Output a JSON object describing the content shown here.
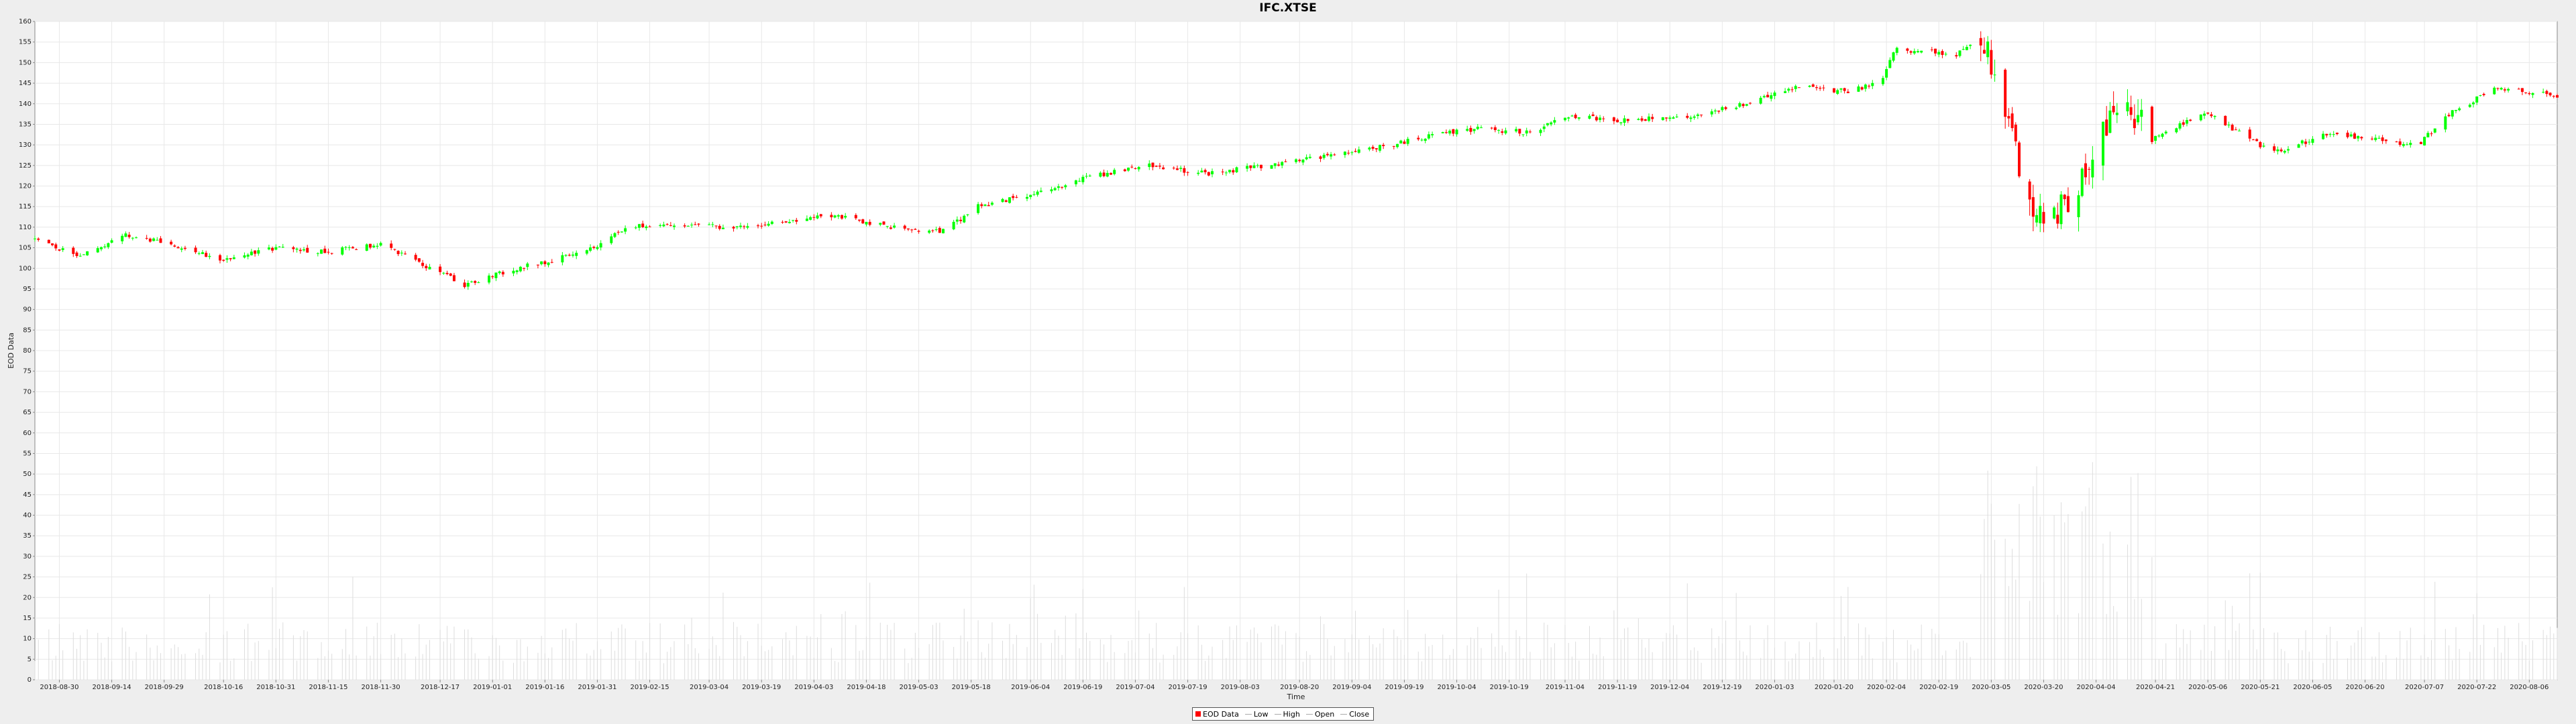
{
  "chart_data": {
    "type": "candlestick",
    "title": "IFC.XTSE",
    "xlabel": "Time",
    "ylabel": "EOD Data",
    "ylim": [
      0,
      160
    ],
    "y_ticks": [
      0,
      5,
      10,
      15,
      20,
      25,
      30,
      35,
      40,
      45,
      50,
      55,
      60,
      65,
      70,
      75,
      80,
      85,
      90,
      95,
      100,
      105,
      110,
      115,
      120,
      125,
      130,
      135,
      140,
      145,
      150,
      155,
      160
    ],
    "x_range": [
      "2018-08-23",
      "2020-08-14"
    ],
    "x_ticks": [
      "2018-08-30",
      "2018-09-14",
      "2018-09-29",
      "2018-10-16",
      "2018-10-31",
      "2018-11-15",
      "2018-11-30",
      "2018-12-17",
      "2019-01-01",
      "2019-01-16",
      "2019-01-31",
      "2019-02-15",
      "2019-03-04",
      "2019-03-19",
      "2019-04-03",
      "2019-04-18",
      "2019-05-03",
      "2019-05-18",
      "2019-06-04",
      "2019-06-19",
      "2019-07-04",
      "2019-07-19",
      "2019-08-03",
      "2019-08-20",
      "2019-09-04",
      "2019-09-19",
      "2019-10-04",
      "2019-10-19",
      "2019-11-04",
      "2019-11-19",
      "2019-12-04",
      "2019-12-19",
      "2020-01-03",
      "2020-01-20",
      "2020-02-04",
      "2020-02-19",
      "2020-03-05",
      "2020-03-20",
      "2020-04-04",
      "2020-04-21",
      "2020-05-06",
      "2020-05-21",
      "2020-06-05",
      "2020-06-20",
      "2020-07-07",
      "2020-07-22",
      "2020-08-06"
    ],
    "close_keypoints": [
      [
        "2018-08-23",
        107
      ],
      [
        "2018-09-05",
        103
      ],
      [
        "2018-09-18",
        108
      ],
      [
        "2018-10-01",
        106
      ],
      [
        "2018-10-15",
        102
      ],
      [
        "2018-10-31",
        105
      ],
      [
        "2018-11-15",
        104
      ],
      [
        "2018-11-30",
        106
      ],
      [
        "2018-12-12",
        101
      ],
      [
        "2018-12-24",
        96
      ],
      [
        "2019-01-08",
        100
      ],
      [
        "2019-01-23",
        103
      ],
      [
        "2019-01-31",
        105
      ],
      [
        "2019-02-08",
        110
      ],
      [
        "2019-02-20",
        111
      ],
      [
        "2019-03-10",
        110
      ],
      [
        "2019-03-25",
        111
      ],
      [
        "2019-04-08",
        113
      ],
      [
        "2019-04-25",
        110
      ],
      [
        "2019-05-10",
        109
      ],
      [
        "2019-05-20",
        115
      ],
      [
        "2019-06-05",
        118
      ],
      [
        "2019-06-20",
        122
      ],
      [
        "2019-07-08",
        125
      ],
      [
        "2019-07-25",
        123
      ],
      [
        "2019-08-10",
        125
      ],
      [
        "2019-08-25",
        127
      ],
      [
        "2019-09-10",
        129
      ],
      [
        "2019-09-25",
        132
      ],
      [
        "2019-10-10",
        134
      ],
      [
        "2019-10-25",
        133
      ],
      [
        "2019-11-05",
        137
      ],
      [
        "2019-11-20",
        136
      ],
      [
        "2019-12-10",
        137
      ],
      [
        "2019-12-25",
        140
      ],
      [
        "2020-01-10",
        144
      ],
      [
        "2020-01-25",
        143
      ],
      [
        "2020-02-03",
        146
      ],
      [
        "2020-02-06",
        153
      ],
      [
        "2020-02-15",
        153
      ],
      [
        "2020-02-24",
        152
      ],
      [
        "2020-03-02",
        156
      ],
      [
        "2020-03-06",
        148
      ],
      [
        "2020-03-12",
        128
      ],
      [
        "2020-03-18",
        112
      ],
      [
        "2020-03-26",
        115
      ],
      [
        "2020-04-02",
        125
      ],
      [
        "2020-04-10",
        140
      ],
      [
        "2020-04-22",
        132
      ],
      [
        "2020-05-05",
        138
      ],
      [
        "2020-05-15",
        133
      ],
      [
        "2020-05-25",
        128
      ],
      [
        "2020-06-10",
        133
      ],
      [
        "2020-06-25",
        131
      ],
      [
        "2020-07-05",
        130
      ],
      [
        "2020-07-15",
        138
      ],
      [
        "2020-07-28",
        144
      ],
      [
        "2020-08-14",
        142
      ]
    ],
    "volume_max": 57,
    "colors": {
      "up": "#00ff00",
      "down": "#ff0000",
      "volume": "#dddddd",
      "grid": "#e8e8e8",
      "outline": "#888888"
    },
    "legend": [
      {
        "label": "EOD Data",
        "color": "#ff0000",
        "kind": "box"
      },
      {
        "label": "Low",
        "color": "#aaaaaa",
        "kind": "line"
      },
      {
        "label": "High",
        "color": "#aaaaaa",
        "kind": "line"
      },
      {
        "label": "Open",
        "color": "#aaaaaa",
        "kind": "line"
      },
      {
        "label": "Close",
        "color": "#aaaaaa",
        "kind": "line"
      }
    ],
    "legend_position": "bottom-center",
    "grid": true
  }
}
